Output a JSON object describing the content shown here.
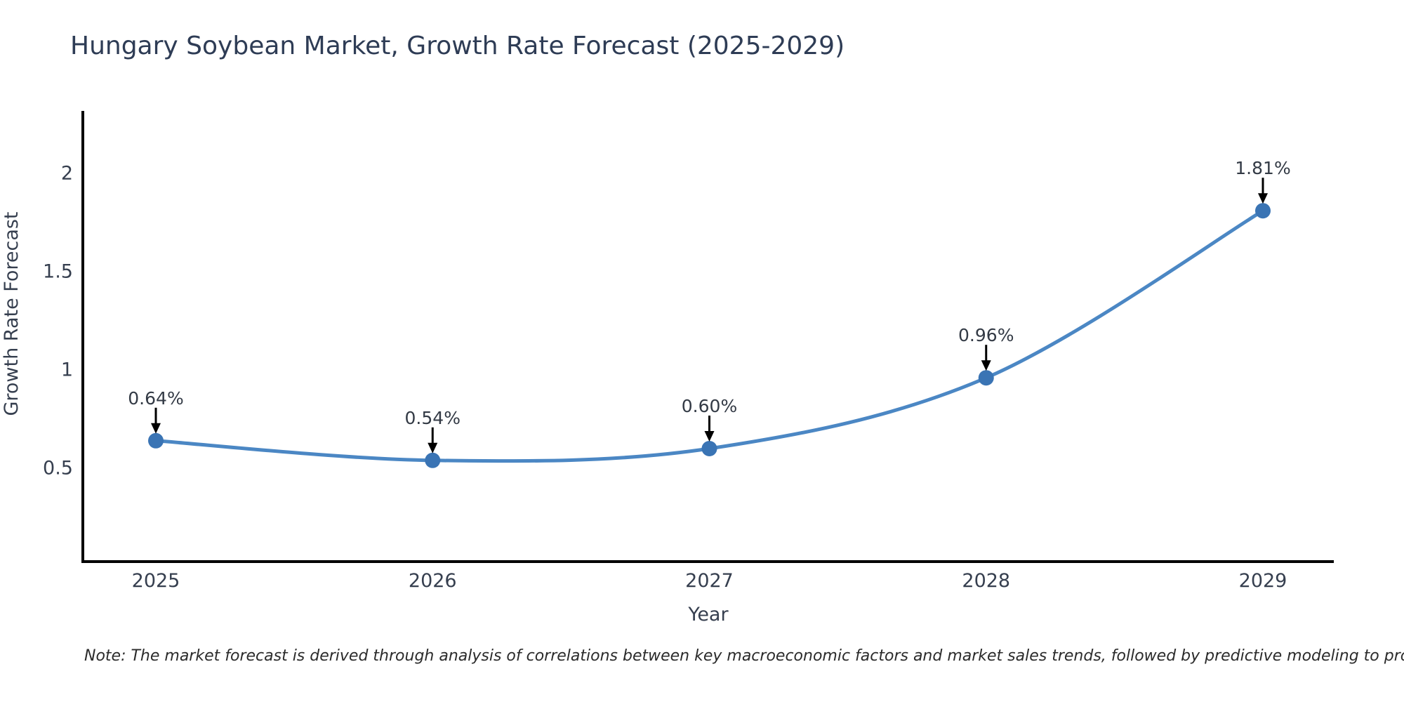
{
  "header": {
    "title": "Hungary Soybean Market, Growth Rate Forecast (2025-2029)"
  },
  "chart_data": {
    "type": "line",
    "title": "Hungary Soybean Market, Growth Rate Forecast (2025-2029)",
    "categories": [
      "2025",
      "2026",
      "2027",
      "2028",
      "2029"
    ],
    "x": [
      2025,
      2026,
      2027,
      2028,
      2029
    ],
    "values": [
      0.64,
      0.54,
      0.6,
      0.96,
      1.81
    ],
    "point_labels": [
      "0.64%",
      "0.54%",
      "0.60%",
      "0.96%",
      "1.81%"
    ],
    "xlabel": "Year",
    "ylabel": "Growth Rate Forecast",
    "y_ticks": [
      0.5,
      1,
      1.5,
      2
    ],
    "y_tick_labels": [
      "0.5",
      "1",
      "1.5",
      "2"
    ],
    "ylim": [
      0.03,
      2.31
    ],
    "grid": false,
    "legend": "none",
    "line_shape": "spline",
    "colors": {
      "line": "#4b87c4",
      "marker": "#3a74b4",
      "axis": "#000000",
      "tick_text": "#363f4f",
      "title_text": "#2e3c55",
      "annotation_text": "#333a45",
      "annotation_arrow": "#000000",
      "background": "#ffffff"
    }
  },
  "footer": {
    "note": "Note: The market forecast is derived through analysis of correlations between key macroeconomic factors and market sales trends, followed by predictive modeling to project future sales"
  }
}
